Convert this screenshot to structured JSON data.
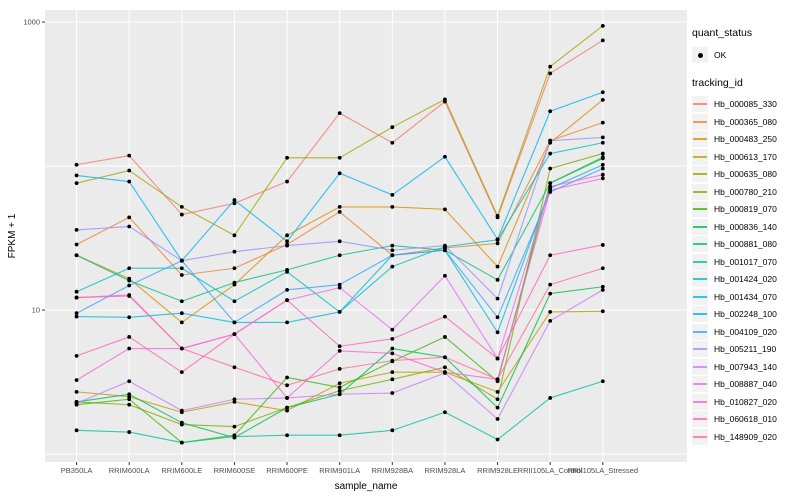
{
  "legend": {
    "quant_status_title": "quant_status",
    "quant_status_items": [
      "OK"
    ],
    "tracking_id_title": "tracking_id"
  },
  "colors": {
    "panel_bg": "#EBEBEB",
    "gridline": "#FFFFFF",
    "legend_key_bg": "#F2F2F2",
    "tick_text": "#4D4D4D",
    "axis_text": "#000000",
    "point": "#000000"
  },
  "chart_data": {
    "type": "line",
    "title": "",
    "xlabel": "sample_name",
    "ylabel": "FPKM + 1",
    "y_scale": "log10",
    "ylim": [
      0.88,
      1300
    ],
    "grid": "major",
    "legend_position": "right",
    "y_ticks": [
      {
        "value": 1000,
        "label": "1000"
      },
      {
        "value": 10,
        "label": "10"
      }
    ],
    "y_gridlines": [
      1,
      10,
      100,
      1000
    ],
    "point_marker": "OK",
    "categories": [
      "PB350LA",
      "RRIM600LA",
      "RRIM600LE",
      "RRIM600SE",
      "RRIM600PE",
      "RRIM901LA",
      "RRIM928BA",
      "RRIM928LA",
      "RRIM928LE",
      "RRII105LA_Control",
      "RRII105LA_Stressed"
    ],
    "series": [
      {
        "name": "Hb_000085_330",
        "color": "#F8766D",
        "values": [
          102,
          118,
          46,
          55,
          78,
          233,
          145,
          280,
          44,
          440,
          745
        ]
      },
      {
        "name": "Hb_000365_080",
        "color": "#EA8331",
        "values": [
          28.5,
          44,
          17.5,
          19.5,
          28.5,
          48,
          24,
          27,
          29,
          150,
          200
        ]
      },
      {
        "name": "Hb_000483_250",
        "color": "#D89000",
        "values": [
          24,
          16.5,
          8.2,
          15,
          33,
          52,
          52,
          50,
          20,
          145,
          288
        ]
      },
      {
        "name": "Hb_000613_170",
        "color": "#C09B00",
        "values": [
          2.7,
          2.5,
          1.95,
          2.3,
          2.0,
          3.1,
          3.7,
          3.7,
          2.7,
          9.7,
          9.8
        ]
      },
      {
        "name": "Hb_000635_080",
        "color": "#A3A500",
        "values": [
          76,
          93,
          52,
          33,
          114,
          114,
          186,
          290,
          45,
          490,
          940
        ]
      },
      {
        "name": "Hb_000780_210",
        "color": "#7CAE00",
        "values": [
          2.3,
          2.2,
          1.6,
          1.55,
          2.1,
          2.75,
          3.3,
          4.0,
          2.4,
          96,
          122
        ]
      },
      {
        "name": "Hb_000819_070",
        "color": "#39B600",
        "values": [
          2.2,
          2.4,
          1.2,
          1.35,
          3.4,
          2.9,
          4.4,
          6.5,
          3.2,
          76,
          113
        ]
      },
      {
        "name": "Hb_000836_140",
        "color": "#00BB4E",
        "values": [
          2.3,
          2.6,
          1.65,
          1.3,
          2.1,
          2.6,
          5.4,
          4.7,
          2.1,
          13,
          14.5
        ]
      },
      {
        "name": "Hb_000881_080",
        "color": "#00BF7D",
        "values": [
          24,
          16,
          11.5,
          15.5,
          19,
          24,
          28,
          26,
          16.2,
          76,
          115
        ]
      },
      {
        "name": "Hb_001017_070",
        "color": "#00C1A3",
        "values": [
          1.46,
          1.42,
          1.2,
          1.32,
          1.35,
          1.35,
          1.46,
          1.95,
          1.26,
          2.45,
          3.2
        ]
      },
      {
        "name": "Hb_001424_020",
        "color": "#00BFC4",
        "values": [
          13.4,
          19.5,
          19.5,
          11.5,
          18.4,
          9.7,
          20,
          27.5,
          30.7,
          122,
          145
        ]
      },
      {
        "name": "Hb_001434_070",
        "color": "#00BADE",
        "values": [
          9.0,
          8.9,
          9.5,
          8.2,
          8.2,
          9.7,
          24,
          26,
          7.0,
          70,
          102
        ]
      },
      {
        "name": "Hb_002248_100",
        "color": "#00B0F6",
        "values": [
          86,
          78,
          22,
          58,
          30,
          89,
          63,
          116,
          31,
          240,
          325
        ]
      },
      {
        "name": "Hb_004109_020",
        "color": "#35A2FF",
        "values": [
          9.5,
          14.8,
          22,
          8.2,
          13.8,
          15,
          24,
          26,
          8.9,
          66,
          96
        ]
      },
      {
        "name": "Hb_005211_190",
        "color": "#9590FF",
        "values": [
          36,
          38,
          22,
          25.4,
          28,
          30,
          26,
          28,
          12,
          150,
          158
        ]
      },
      {
        "name": "Hb_007943_140",
        "color": "#C77CFF",
        "values": [
          2.25,
          3.2,
          2.0,
          2.4,
          2.45,
          2.6,
          2.65,
          3.65,
          1.75,
          8.4,
          13.8
        ]
      },
      {
        "name": "Hb_008887_040",
        "color": "#E76BF3",
        "values": [
          12.2,
          12.5,
          5.4,
          6.8,
          11.7,
          14.3,
          7.3,
          17.3,
          4.6,
          72,
          87
        ]
      },
      {
        "name": "Hb_010827_020",
        "color": "#FA62DB",
        "values": [
          3.26,
          5.4,
          5.4,
          6.8,
          2.45,
          5.2,
          5.0,
          3.7,
          3.3,
          68,
          82
        ]
      },
      {
        "name": "Hb_060618_010",
        "color": "#FF62BC",
        "values": [
          4.8,
          6.5,
          3.7,
          6.8,
          11.7,
          5.6,
          6.3,
          9.0,
          4.6,
          24,
          28.3
        ]
      },
      {
        "name": "Hb_148909_020",
        "color": "#FF6A98",
        "values": [
          12.2,
          12.7,
          5.4,
          4.0,
          3.0,
          3.9,
          4.45,
          4.7,
          3.3,
          15,
          19.5
        ]
      }
    ]
  }
}
